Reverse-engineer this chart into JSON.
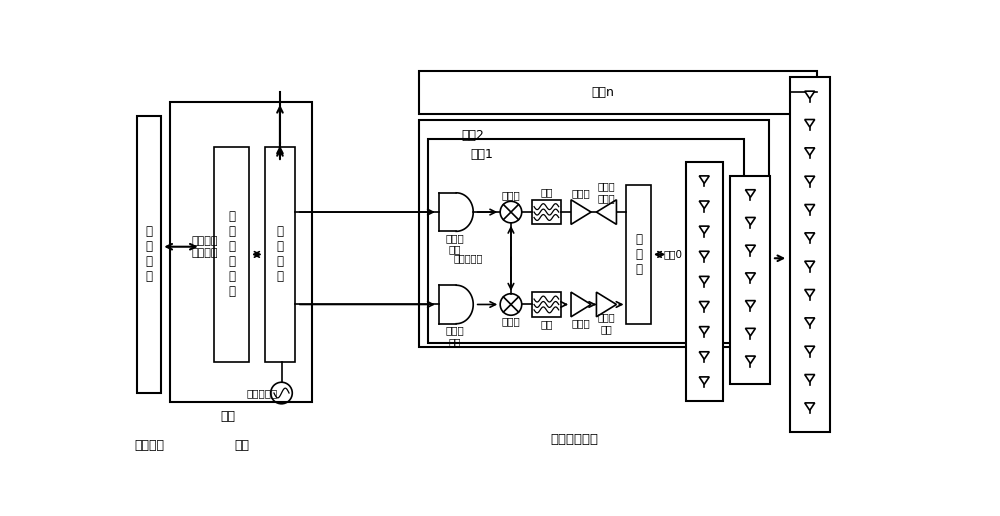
{
  "bg_color": "#ffffff",
  "lc": "#000000",
  "fs": 8.5,
  "fig_w": 10.0,
  "fig_h": 5.16,
  "labels": {
    "baseband": "基\n带\n处\n理",
    "backplane": "背板",
    "baseband_unit": "基带单元",
    "cpri": "通用公共\n无线接口",
    "dif": "数\n字\n中\n频\n处\n理",
    "power_combine": "功\n率\n合\n成",
    "local_osc_bp": "本地振荡器",
    "card_n": "插卡n",
    "card_2": "插卡2",
    "card_1": "插卡1",
    "adc": "模数转\n换器",
    "dac": "数模转\n换器",
    "mixer_rx": "混频器",
    "mixer_tx": "混频器",
    "filter_rx": "滤波",
    "filter_tx": "滤波",
    "amp_rx": "放大器",
    "amp_tx": "放大器",
    "lna": "低噪声\n放大器",
    "pa": "功率放\n大器",
    "circulator": "环\n形\n器",
    "local_osc_card": "本地振荡器",
    "channel0": "信道0",
    "transceiver": "收发信机插卡"
  }
}
